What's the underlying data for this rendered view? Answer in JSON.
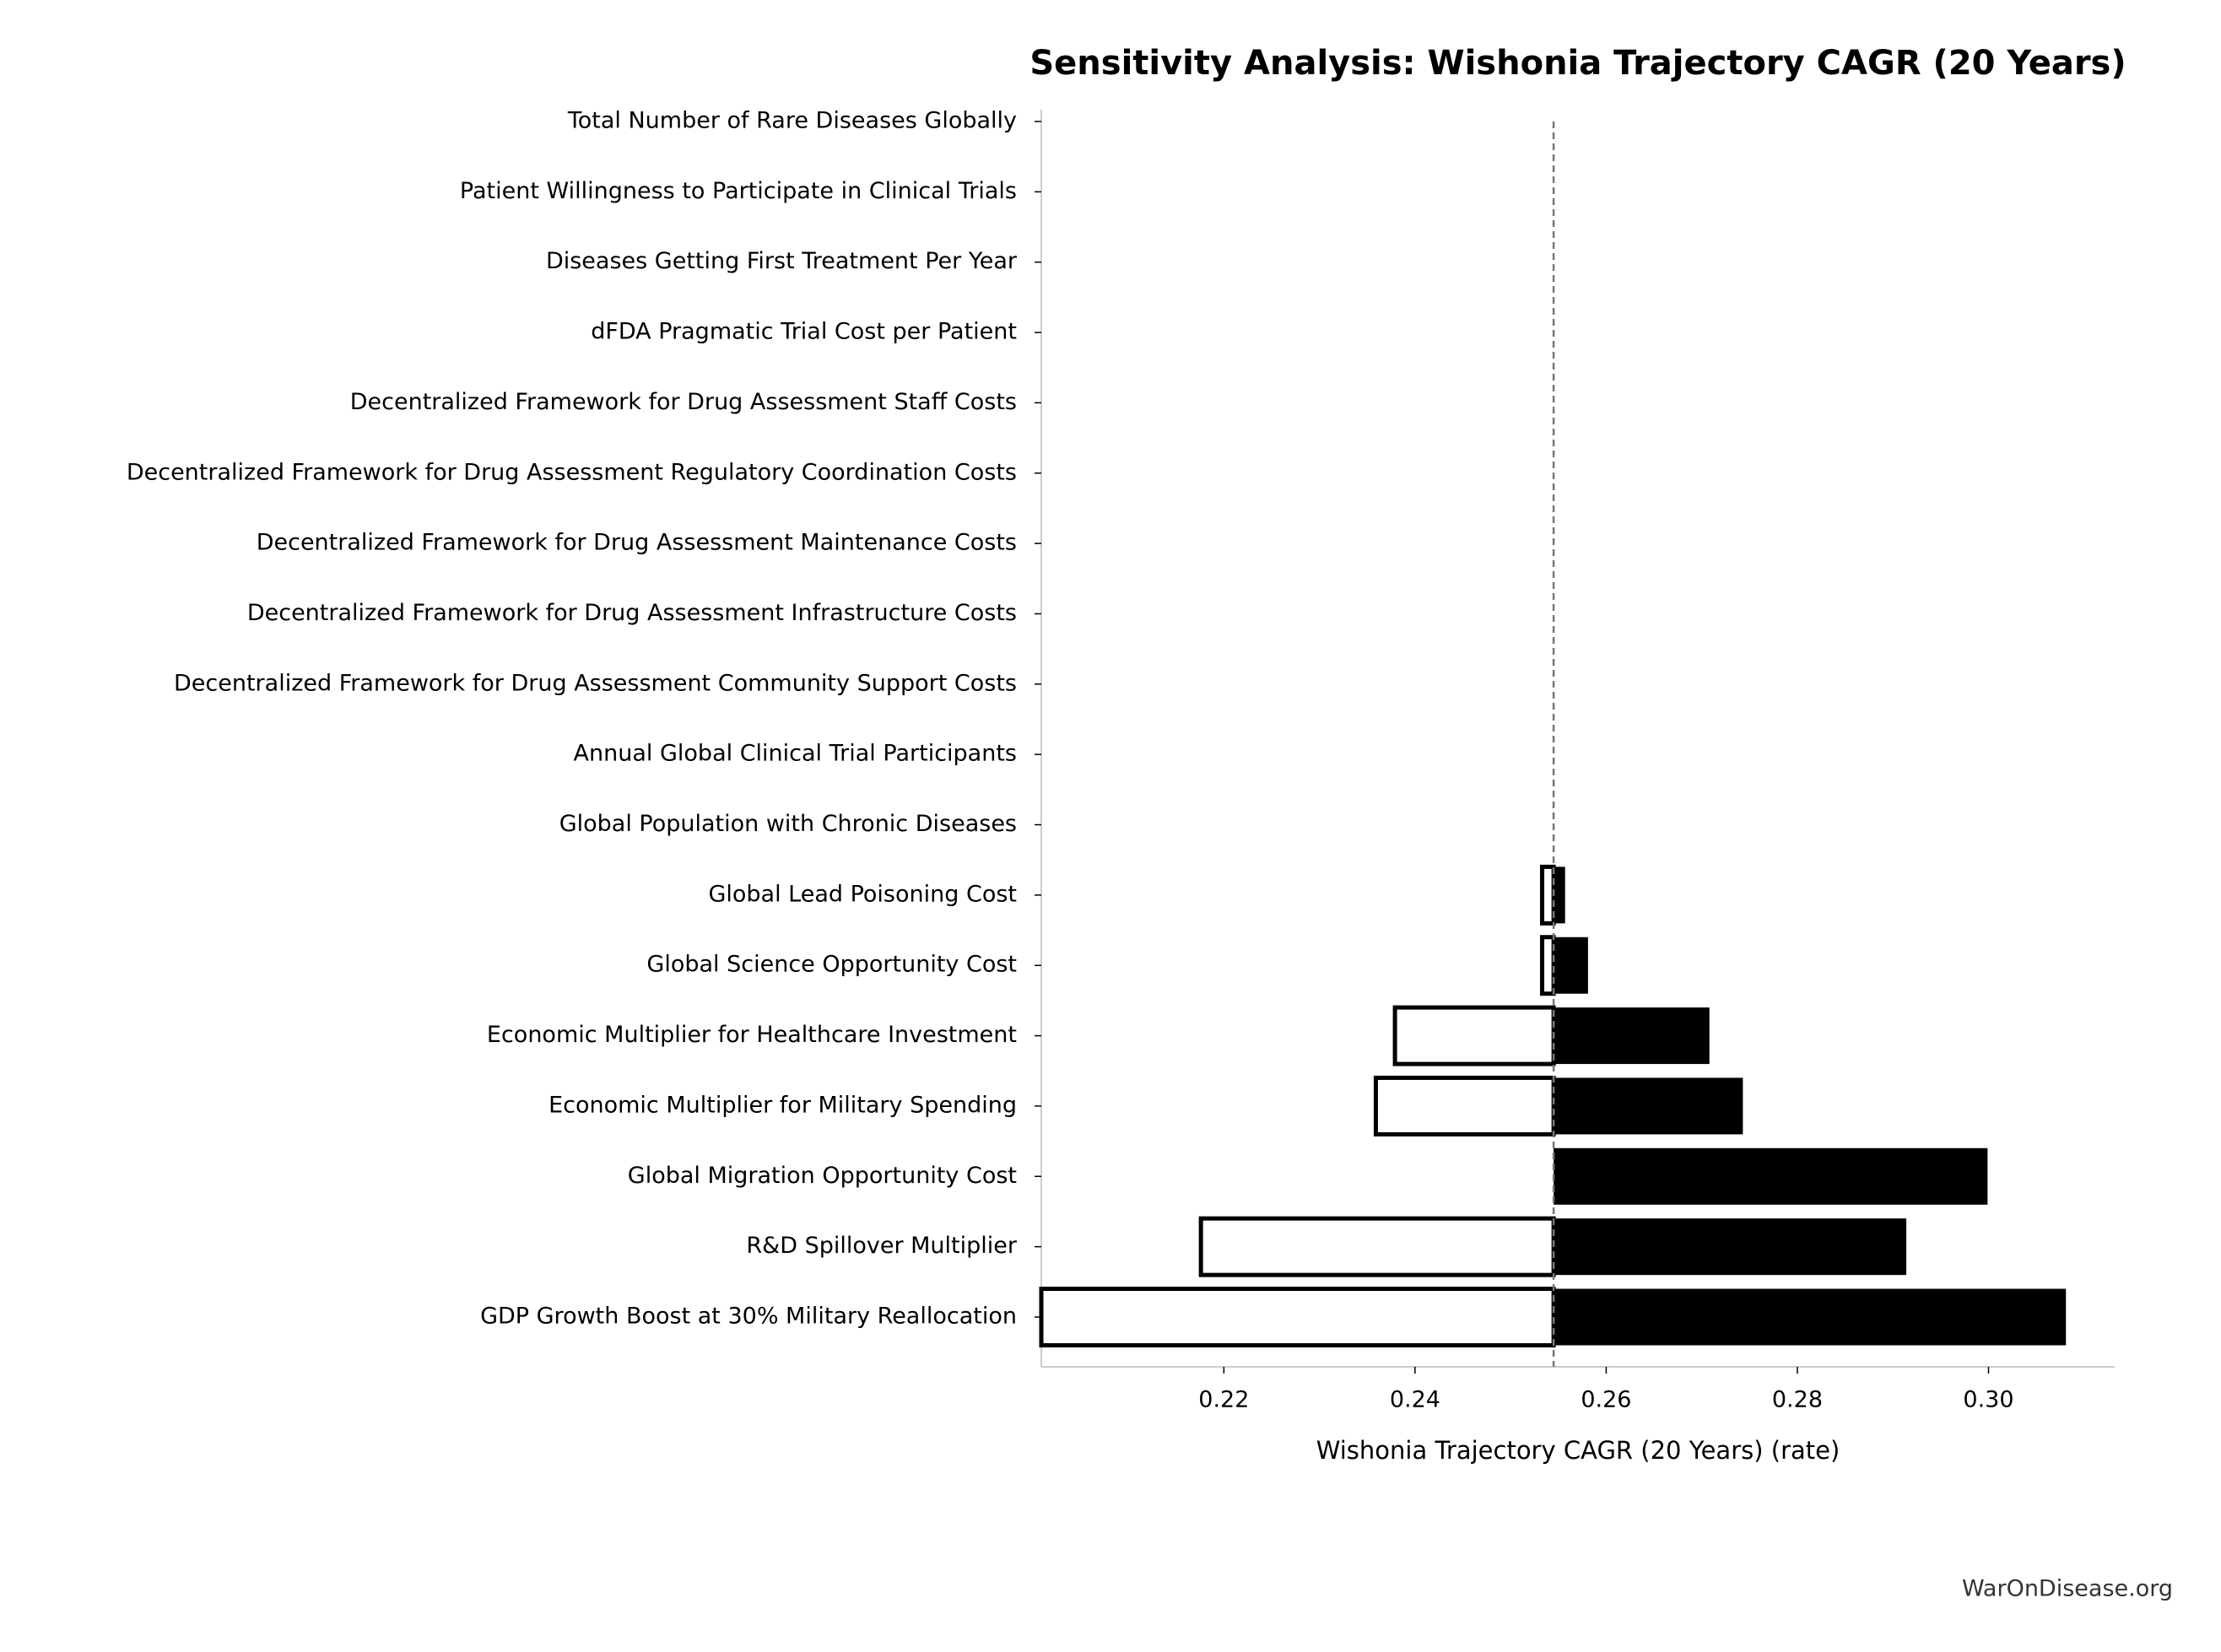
{
  "chart_data": {
    "type": "tornado",
    "title": "Sensitivity Analysis: Wishonia Trajectory CAGR (20 Years)",
    "xlabel": "Wishonia Trajectory CAGR (20 Years) (rate)",
    "source": "WarOnDisease.org",
    "categories": [
      "Total Number of Rare Diseases Globally",
      "Patient Willingness to Participate in Clinical Trials",
      "Diseases Getting First Treatment Per Year",
      "dFDA Pragmatic Trial Cost per Patient",
      "Decentralized Framework for Drug Assessment Staff Costs",
      "Decentralized Framework for Drug Assessment Regulatory Coordination Costs",
      "Decentralized Framework for Drug Assessment Maintenance Costs",
      "Decentralized Framework for Drug Assessment Infrastructure Costs",
      "Decentralized Framework for Drug Assessment Community Support Costs",
      "Annual Global Clinical Trial Participants",
      "Global Population with Chronic Diseases",
      "Global Lead Poisoning Cost",
      "Global Science Opportunity Cost",
      "Economic Multiplier for Healthcare Investment",
      "Economic Multiplier for Military Spending",
      "Global Migration Opportunity Cost",
      "R&D Spillover Multiplier",
      "GDP Growth Boost at 30% Military Reallocation"
    ],
    "low": [
      null,
      null,
      null,
      null,
      null,
      null,
      null,
      null,
      null,
      null,
      null,
      0.2533,
      0.2533,
      0.2379,
      0.2359,
      null,
      0.2176,
      0.2009
    ],
    "high": [
      null,
      null,
      null,
      null,
      null,
      null,
      null,
      null,
      null,
      null,
      null,
      0.2557,
      0.2581,
      0.2708,
      0.2743,
      0.2999,
      0.2914,
      0.3081
    ],
    "baseline": 0.2545,
    "low_color": "#ffffff",
    "high_color": "#000000",
    "xlim": [
      0.2009,
      0.3132
    ],
    "xticks": [
      0.22,
      0.24,
      0.26,
      0.28,
      {
        "value": 0.3,
        "label": "0.30"
      }
    ]
  }
}
